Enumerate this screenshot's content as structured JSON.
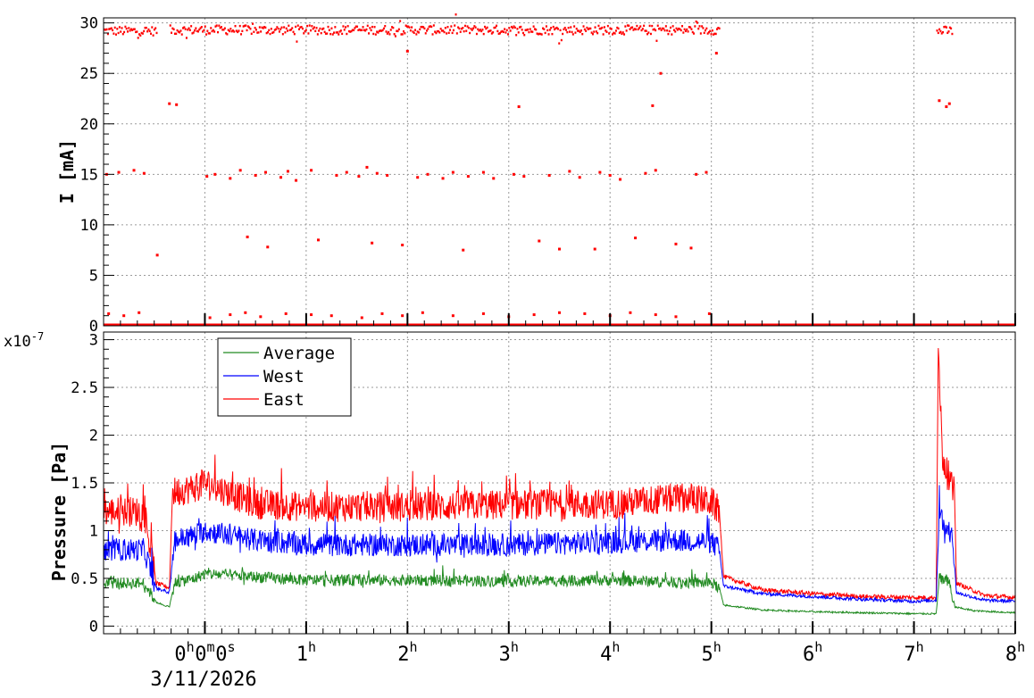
{
  "chart_data": [
    {
      "type": "scatter",
      "panel": "top",
      "title": "",
      "xlabel": "",
      "ylabel": "I [mA]",
      "xlim": [
        -1.0,
        8.0
      ],
      "ylim": [
        0,
        30.5
      ],
      "y_ticks": [
        "0",
        "5",
        "10",
        "15",
        "20",
        "25",
        "30"
      ],
      "grid": true,
      "series": [
        {
          "color": "#ff0000",
          "segments": [
            {
              "x": [
                -1.0,
                -0.48
              ],
              "level": 29.2
            },
            {
              "x": [
                -0.35,
                5.08
              ],
              "level": 29.3
            },
            {
              "x": [
                7.22,
                7.38
              ],
              "level": 29.2
            }
          ],
          "zero_line": [
            -1.0,
            8.0
          ],
          "scattered_points": [
            [
              -0.97,
              15.0
            ],
            [
              -0.85,
              15.2
            ],
            [
              -0.7,
              15.4
            ],
            [
              -0.6,
              15.1
            ],
            [
              -0.47,
              7.0
            ],
            [
              -0.35,
              22.0
            ],
            [
              -0.28,
              21.9
            ],
            [
              0.02,
              14.8
            ],
            [
              0.1,
              15.0
            ],
            [
              0.25,
              14.6
            ],
            [
              0.35,
              15.4
            ],
            [
              0.42,
              8.8
            ],
            [
              0.5,
              14.9
            ],
            [
              0.6,
              15.2
            ],
            [
              0.62,
              7.8
            ],
            [
              0.75,
              14.7
            ],
            [
              0.82,
              15.3
            ],
            [
              0.9,
              14.4
            ],
            [
              1.05,
              15.4
            ],
            [
              1.12,
              8.5
            ],
            [
              1.3,
              14.9
            ],
            [
              1.4,
              15.2
            ],
            [
              1.52,
              14.8
            ],
            [
              1.6,
              15.7
            ],
            [
              1.65,
              8.2
            ],
            [
              1.7,
              15.1
            ],
            [
              1.8,
              14.9
            ],
            [
              1.95,
              8.0
            ],
            [
              2.0,
              27.2
            ],
            [
              2.1,
              14.7
            ],
            [
              2.2,
              15.0
            ],
            [
              2.35,
              14.6
            ],
            [
              2.45,
              15.2
            ],
            [
              2.55,
              7.5
            ],
            [
              2.6,
              14.8
            ],
            [
              2.75,
              15.2
            ],
            [
              2.85,
              14.6
            ],
            [
              3.05,
              15.0
            ],
            [
              3.1,
              21.7
            ],
            [
              3.15,
              14.8
            ],
            [
              3.3,
              8.4
            ],
            [
              3.4,
              14.9
            ],
            [
              3.5,
              7.6
            ],
            [
              3.6,
              15.3
            ],
            [
              3.7,
              14.7
            ],
            [
              3.85,
              7.6
            ],
            [
              3.9,
              15.2
            ],
            [
              4.0,
              14.9
            ],
            [
              4.1,
              14.5
            ],
            [
              4.25,
              8.7
            ],
            [
              4.35,
              15.1
            ],
            [
              4.42,
              21.8
            ],
            [
              4.45,
              15.4
            ],
            [
              4.5,
              25.0
            ],
            [
              4.65,
              8.1
            ],
            [
              4.8,
              7.7
            ],
            [
              4.85,
              15.0
            ],
            [
              4.95,
              15.2
            ],
            [
              5.05,
              27.0
            ],
            [
              7.25,
              22.3
            ],
            [
              7.32,
              21.7
            ],
            [
              7.35,
              22.0
            ],
            [
              -0.95,
              1.2
            ],
            [
              -0.8,
              1.0
            ],
            [
              -0.65,
              1.3
            ],
            [
              0.05,
              0.8
            ],
            [
              0.25,
              1.1
            ],
            [
              0.4,
              1.3
            ],
            [
              0.55,
              0.9
            ],
            [
              0.8,
              1.2
            ],
            [
              1.05,
              1.1
            ],
            [
              1.25,
              1.0
            ],
            [
              1.55,
              0.8
            ],
            [
              1.75,
              1.2
            ],
            [
              1.95,
              1.0
            ],
            [
              2.15,
              1.3
            ],
            [
              2.45,
              1.0
            ],
            [
              2.75,
              1.2
            ],
            [
              3.0,
              0.9
            ],
            [
              3.25,
              1.1
            ],
            [
              3.5,
              1.3
            ],
            [
              3.75,
              1.2
            ],
            [
              4.0,
              1.0
            ],
            [
              4.2,
              1.3
            ],
            [
              4.45,
              1.1
            ],
            [
              4.65,
              0.9
            ],
            [
              4.98,
              1.2
            ]
          ]
        }
      ]
    },
    {
      "type": "line",
      "panel": "bottom",
      "title": "",
      "xlabel": "",
      "ylabel": "Pressure [Pa]",
      "y_exponent_label": "x10",
      "y_exponent_value": "-7",
      "xlim": [
        -1.0,
        8.0
      ],
      "ylim": [
        -0.08,
        3.08
      ],
      "y_ticks": [
        "0",
        "0.5",
        "1",
        "1.5",
        "2",
        "2.5",
        "3"
      ],
      "x_ticks": [
        "0h0m0s",
        "1h",
        "2h",
        "3h",
        "4h",
        "5h",
        "6h",
        "7h",
        "8h"
      ],
      "x_tick_values": [
        0,
        1,
        2,
        3,
        4,
        5,
        6,
        7,
        8
      ],
      "date_label": "3/11/2026",
      "grid": true,
      "legend_position": "top-left",
      "series": [
        {
          "name": "Average",
          "color": "#228b22",
          "points": [
            [
              -1.0,
              0.45
            ],
            [
              -0.6,
              0.45
            ],
            [
              -0.48,
              0.25
            ],
            [
              -0.35,
              0.2
            ],
            [
              -0.3,
              0.45
            ],
            [
              -0.1,
              0.5
            ],
            [
              0.0,
              0.55
            ],
            [
              1.0,
              0.48
            ],
            [
              2.0,
              0.48
            ],
            [
              3.0,
              0.47
            ],
            [
              4.0,
              0.48
            ],
            [
              5.0,
              0.45
            ],
            [
              5.08,
              0.4
            ],
            [
              5.12,
              0.22
            ],
            [
              5.5,
              0.17
            ],
            [
              6.0,
              0.15
            ],
            [
              6.5,
              0.14
            ],
            [
              7.0,
              0.13
            ],
            [
              7.22,
              0.13
            ],
            [
              7.25,
              0.5
            ],
            [
              7.35,
              0.45
            ],
            [
              7.4,
              0.2
            ],
            [
              7.6,
              0.16
            ],
            [
              8.0,
              0.14
            ]
          ],
          "noise": 0.06
        },
        {
          "name": "West",
          "color": "#0000ff",
          "points": [
            [
              -1.0,
              0.8
            ],
            [
              -0.6,
              0.8
            ],
            [
              -0.48,
              0.4
            ],
            [
              -0.35,
              0.35
            ],
            [
              -0.3,
              0.9
            ],
            [
              -0.1,
              0.95
            ],
            [
              0.0,
              1.0
            ],
            [
              0.5,
              0.9
            ],
            [
              1.0,
              0.85
            ],
            [
              2.0,
              0.85
            ],
            [
              3.0,
              0.85
            ],
            [
              4.0,
              0.88
            ],
            [
              4.6,
              0.9
            ],
            [
              5.0,
              0.88
            ],
            [
              5.08,
              0.8
            ],
            [
              5.12,
              0.42
            ],
            [
              5.5,
              0.34
            ],
            [
              6.0,
              0.31
            ],
            [
              6.5,
              0.28
            ],
            [
              7.0,
              0.26
            ],
            [
              7.22,
              0.27
            ],
            [
              7.25,
              1.25
            ],
            [
              7.3,
              1.0
            ],
            [
              7.38,
              0.95
            ],
            [
              7.42,
              0.35
            ],
            [
              7.7,
              0.27
            ],
            [
              8.0,
              0.26
            ]
          ],
          "noise": 0.12
        },
        {
          "name": "East",
          "color": "#ff0000",
          "points": [
            [
              -1.0,
              1.2
            ],
            [
              -0.6,
              1.2
            ],
            [
              -0.48,
              0.45
            ],
            [
              -0.35,
              0.4
            ],
            [
              -0.32,
              1.4
            ],
            [
              -0.1,
              1.45
            ],
            [
              0.0,
              1.5
            ],
            [
              0.5,
              1.28
            ],
            [
              1.0,
              1.25
            ],
            [
              2.0,
              1.25
            ],
            [
              3.0,
              1.27
            ],
            [
              4.0,
              1.28
            ],
            [
              4.75,
              1.35
            ],
            [
              5.0,
              1.3
            ],
            [
              5.08,
              1.2
            ],
            [
              5.12,
              0.52
            ],
            [
              5.5,
              0.38
            ],
            [
              6.0,
              0.34
            ],
            [
              6.5,
              0.31
            ],
            [
              7.0,
              0.3
            ],
            [
              7.22,
              0.3
            ],
            [
              7.24,
              2.95
            ],
            [
              7.28,
              1.8
            ],
            [
              7.35,
              1.5
            ],
            [
              7.4,
              1.4
            ],
            [
              7.42,
              0.45
            ],
            [
              7.7,
              0.32
            ],
            [
              8.0,
              0.3
            ]
          ],
          "noise": 0.16
        }
      ]
    }
  ]
}
